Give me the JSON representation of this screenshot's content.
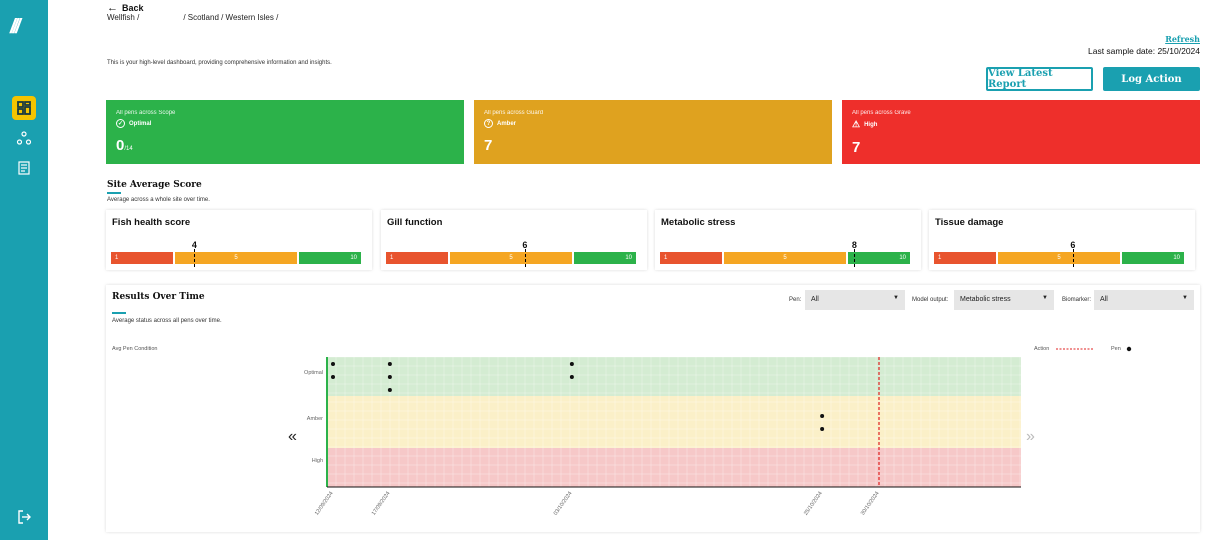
{
  "sidebar": {
    "logo": "///",
    "items": [
      {
        "icon": "dashboard-icon"
      },
      {
        "icon": "sites-icon"
      },
      {
        "icon": "report-icon"
      }
    ],
    "logout_icon": "logout-icon",
    "accent": "#1aa0b0",
    "active_color": "#f5c400"
  },
  "header": {
    "back_label": "Back",
    "breadcrumb": [
      "Wellfish /",
      "/ Scotland / Western Isles /"
    ],
    "intro": "This is your high-level dashboard, providing comprehensive information and insights.",
    "refresh_label": "Refresh",
    "last_sample": "Last sample date: 25/10/2024",
    "view_report_label": "View Latest Report",
    "log_action_label": "Log Action"
  },
  "status_cards": [
    {
      "label": "All pens across Scope",
      "level": "Optimal",
      "value": "0",
      "suffix": "/14",
      "color": "#2cb24a"
    },
    {
      "label": "All pens across Guard",
      "level": "Amber",
      "value": "7",
      "suffix": "",
      "color": "#dfa21f"
    },
    {
      "label": "All pens across Grave",
      "level": "High",
      "value": "7",
      "suffix": "",
      "color": "#ee2f2b"
    }
  ],
  "site_average": {
    "title": "Site Average Score",
    "subtitle": "Average across a whole site over time.",
    "cards": [
      {
        "title": "Fish health score",
        "score": "4",
        "score_value": 4,
        "seg_low": "1",
        "seg_mid": "5",
        "seg_high": "10"
      },
      {
        "title": "Gill function",
        "score": "6",
        "score_value": 6,
        "seg_low": "1",
        "seg_mid": "5",
        "seg_high": "10"
      },
      {
        "title": "Metabolic stress",
        "score": "8",
        "score_value": 8,
        "seg_low": "1",
        "seg_mid": "5",
        "seg_high": "10"
      },
      {
        "title": "Tissue damage",
        "score": "6",
        "score_value": 6,
        "seg_low": "1",
        "seg_mid": "5",
        "seg_high": "10"
      }
    ]
  },
  "results": {
    "title": "Results Over Time",
    "subtitle": "Average status across all pens over time.",
    "filters": {
      "pen_label": "Pen:",
      "pen_value": "All",
      "model_label": "Model output:",
      "model_value": "Metabolic stress",
      "biomarker_label": "Biomarker:",
      "biomarker_value": "All"
    },
    "legend": {
      "action": "Action",
      "pen": "Pen"
    },
    "nav_prev": "«",
    "nav_next": "»"
  },
  "chart_data": {
    "type": "scatter",
    "ylabel": "Avg Pen Condition",
    "y_categories": [
      "Optimal",
      "Amber",
      "High"
    ],
    "x": [
      "12/09/2024",
      "17/09/2024",
      "03/10/2024",
      "25/10/2024",
      "30/10/2024"
    ],
    "series": [
      {
        "name": "Pen",
        "points": [
          {
            "x": "12/09/2024",
            "y": "Optimal"
          },
          {
            "x": "12/09/2024",
            "y": "Optimal"
          },
          {
            "x": "17/09/2024",
            "y": "Optimal"
          },
          {
            "x": "17/09/2024",
            "y": "Optimal"
          },
          {
            "x": "17/09/2024",
            "y": "Optimal"
          },
          {
            "x": "03/10/2024",
            "y": "Optimal"
          },
          {
            "x": "03/10/2024",
            "y": "Optimal"
          },
          {
            "x": "25/10/2024",
            "y": "Amber"
          },
          {
            "x": "25/10/2024",
            "y": "Amber"
          }
        ]
      }
    ],
    "action_dates": [
      "30/10/2024"
    ],
    "band_colors": {
      "Optimal": "#d4ecd2",
      "Amber": "#fbf0c8",
      "High": "#f6c8c8"
    },
    "action_color": "#e02020",
    "grid": true
  }
}
